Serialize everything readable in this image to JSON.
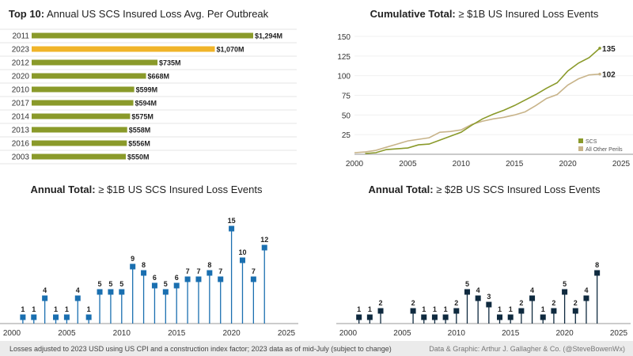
{
  "colors": {
    "scs_green": "#8a9a2a",
    "highlight_2023": "#f0b429",
    "other_perils": "#c8b48a",
    "billion_marker": "#1f77b4",
    "two_billion_marker": "#0f2a3f",
    "grid": "#e6e6e6",
    "footer_bg": "#ebebeb"
  },
  "footer": {
    "note": "Losses adjusted to 2023 USD using US CPI and a construction index factor; 2023 data as of mid-July (subject to change)",
    "credit": "Data & Graphic: Arthur J. Gallagher & Co. (@SteveBowenWx)"
  },
  "chart_data": [
    {
      "type": "bar",
      "orientation": "horizontal",
      "title_bold": "Top 10:",
      "title": "Annual US SCS Insured Loss Avg. Per Outbreak",
      "categories": [
        "2011",
        "2023",
        "2012",
        "2020",
        "2010",
        "2017",
        "2014",
        "2013",
        "2016",
        "2003"
      ],
      "values": [
        1294,
        1070,
        735,
        668,
        599,
        594,
        575,
        558,
        556,
        550
      ],
      "data_labels": [
        "$1,294M",
        "$1,070M",
        "$735M",
        "$668M",
        "$599M",
        "$594M",
        "$575M",
        "$558M",
        "$556M",
        "$550M"
      ],
      "highlight": "2023",
      "unit": "USD millions"
    },
    {
      "type": "line",
      "title_bold": "Cumulative Total:",
      "title": "≥ $1B US Insured Loss Events",
      "xlim": [
        2000,
        2025
      ],
      "ylim": [
        0,
        150
      ],
      "x_ticks": [
        2000,
        2005,
        2010,
        2015,
        2020,
        2025
      ],
      "y_ticks": [
        25,
        50,
        75,
        100,
        125,
        150
      ],
      "grid": true,
      "legend": "bottom-right",
      "series": [
        {
          "name": "SCS",
          "x": [
            2001,
            2002,
            2003,
            2004,
            2005,
            2006,
            2007,
            2008,
            2009,
            2010,
            2011,
            2012,
            2013,
            2014,
            2015,
            2016,
            2017,
            2018,
            2019,
            2020,
            2021,
            2022,
            2023
          ],
          "y": [
            1,
            2,
            6,
            7,
            8,
            12,
            13,
            18,
            23,
            28,
            37,
            45,
            51,
            56,
            62,
            69,
            76,
            84,
            91,
            106,
            116,
            123,
            135
          ],
          "end_label": "135"
        },
        {
          "name": "All Other Perils",
          "x": [
            2000,
            2001,
            2002,
            2003,
            2004,
            2005,
            2006,
            2007,
            2008,
            2009,
            2010,
            2011,
            2012,
            2013,
            2014,
            2015,
            2016,
            2017,
            2018,
            2019,
            2020,
            2021,
            2022,
            2023
          ],
          "y": [
            2,
            3,
            5,
            9,
            13,
            17,
            19,
            21,
            28,
            29,
            31,
            38,
            42,
            45,
            47,
            50,
            54,
            62,
            71,
            76,
            88,
            96,
            101,
            102
          ],
          "end_label": "102"
        }
      ]
    },
    {
      "type": "lollipop",
      "title_bold": "Annual Total:",
      "title": "≥ $1B US SCS Insured Loss Events",
      "xlim": [
        2000,
        2025
      ],
      "x_ticks": [
        2000,
        2005,
        2010,
        2015,
        2020,
        2025
      ],
      "x": [
        2001,
        2002,
        2003,
        2004,
        2005,
        2006,
        2007,
        2008,
        2009,
        2010,
        2011,
        2012,
        2013,
        2014,
        2015,
        2016,
        2017,
        2018,
        2019,
        2020,
        2021,
        2022,
        2023
      ],
      "values": [
        1,
        1,
        4,
        1,
        1,
        4,
        1,
        5,
        5,
        5,
        9,
        8,
        6,
        5,
        6,
        7,
        7,
        8,
        7,
        15,
        10,
        7,
        12
      ]
    },
    {
      "type": "lollipop",
      "title_bold": "Annual Total:",
      "title": "≥ $2B US SCS Insured Loss Events",
      "xlim": [
        2000,
        2025
      ],
      "x_ticks": [
        2000,
        2005,
        2010,
        2015,
        2020,
        2025
      ],
      "x": [
        2001,
        2002,
        2003,
        2006,
        2007,
        2008,
        2009,
        2010,
        2011,
        2012,
        2013,
        2014,
        2015,
        2016,
        2017,
        2018,
        2019,
        2020,
        2021,
        2022,
        2023
      ],
      "values": [
        1,
        1,
        2,
        2,
        1,
        1,
        1,
        2,
        5,
        4,
        3,
        1,
        1,
        2,
        4,
        1,
        2,
        5,
        2,
        4,
        8
      ]
    }
  ]
}
